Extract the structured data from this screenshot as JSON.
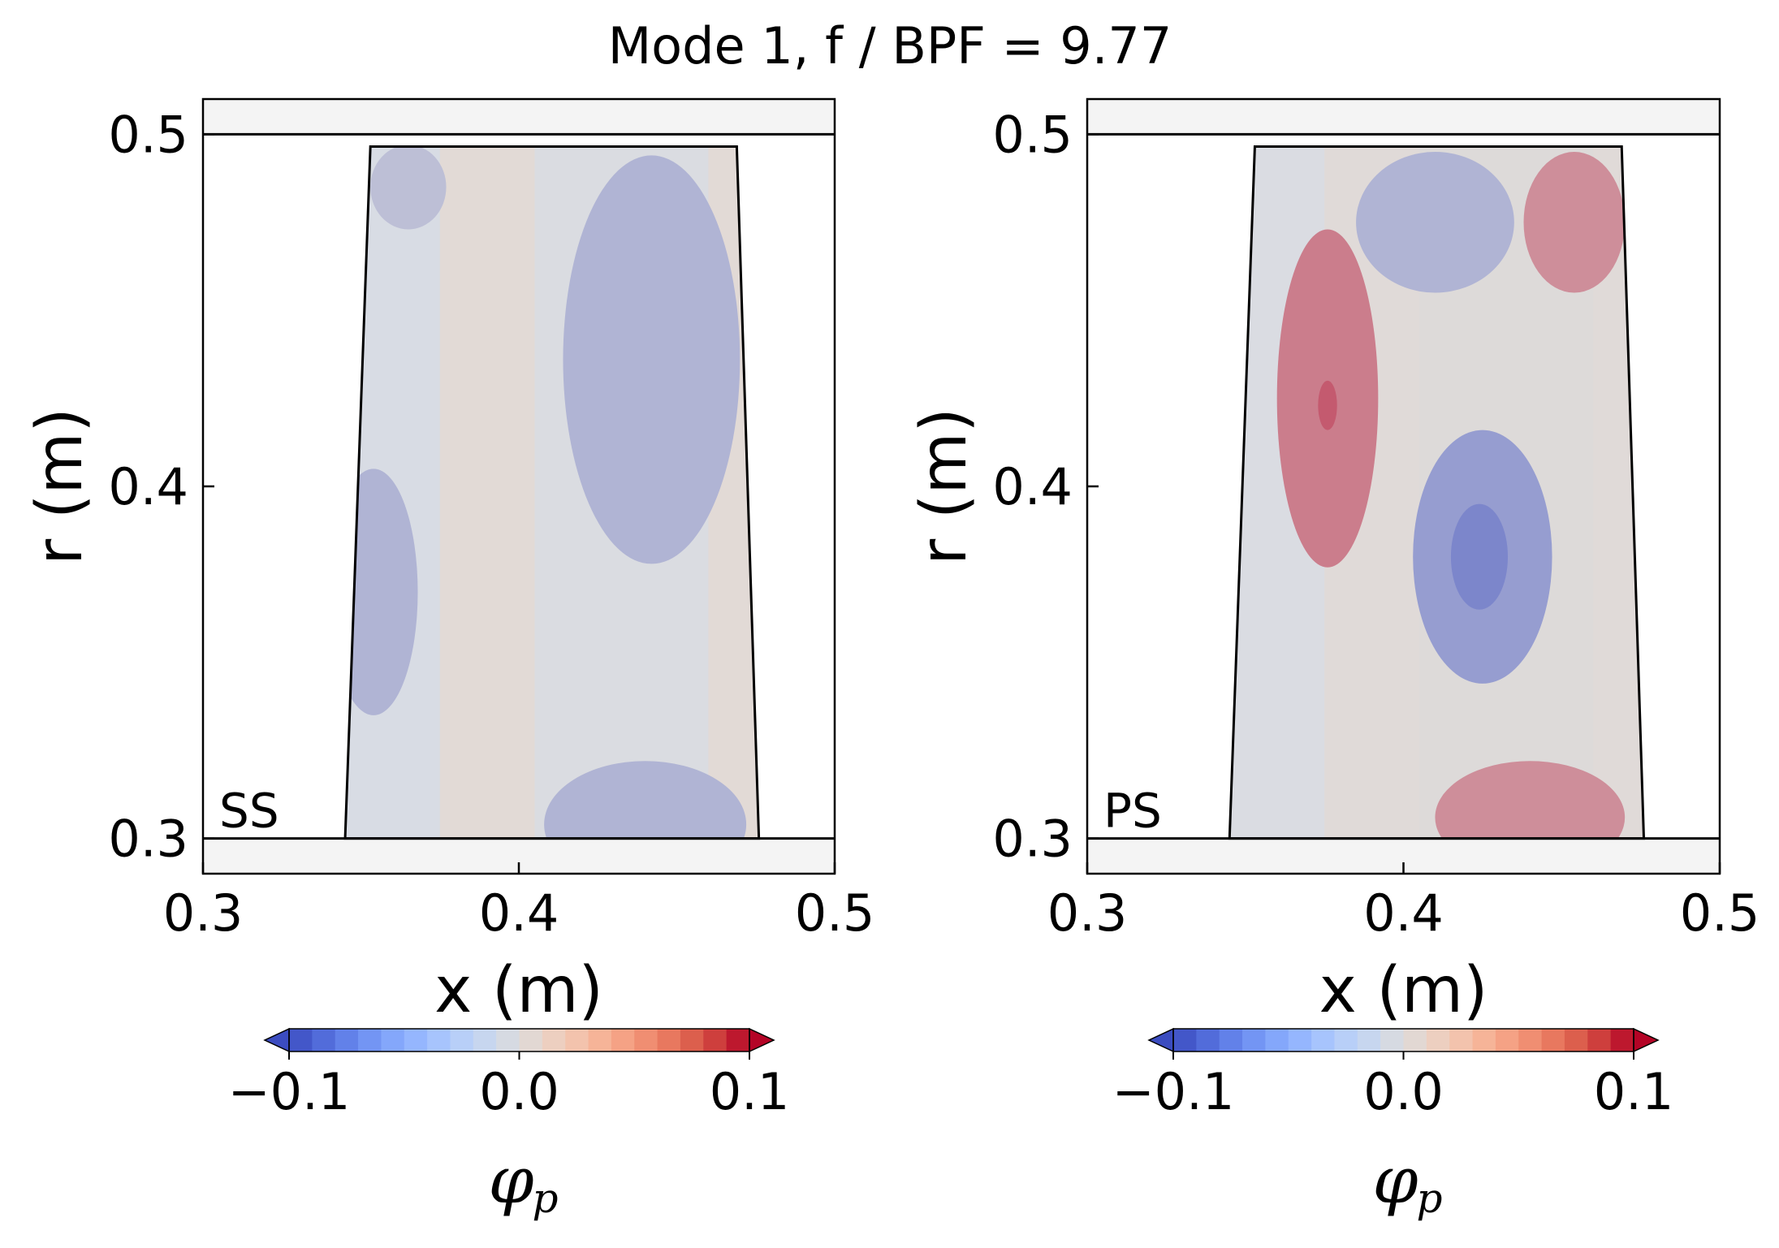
{
  "chart_data": {
    "type": "heatmap",
    "title": "Mode 1, f / BPF = 9.77",
    "colormap": [
      "#3b4cc0",
      "#5977e3",
      "#7b9ff9",
      "#9ebeff",
      "#c0d4f5",
      "#dddcdc",
      "#f2cbb7",
      "#f7ac8e",
      "#ee8468",
      "#d65244",
      "#b40426"
    ],
    "panels": [
      {
        "annotation": "SS",
        "xlabel": "x (m)",
        "ylabel": "r (m)",
        "xlim": [
          0.3,
          0.5
        ],
        "ylim": [
          0.29,
          0.51
        ],
        "xticks": [
          "0.3",
          "0.4",
          "0.5"
        ],
        "yticks": [
          "0.3",
          "0.4",
          "0.5"
        ],
        "hub_r": 0.3,
        "casing_r": 0.5,
        "blade_outline": [
          [
            0.345,
            0.3
          ],
          [
            0.353,
            0.4965
          ],
          [
            0.469,
            0.4965
          ],
          [
            0.476,
            0.3
          ]
        ],
        "field_regions": [
          {
            "cx": 0.442,
            "cy": 0.436,
            "rx": 0.028,
            "ry": 0.058,
            "value": -0.01
          },
          {
            "cx": 0.44,
            "cy": 0.304,
            "rx": 0.032,
            "ry": 0.018,
            "value": -0.01
          },
          {
            "cx": 0.354,
            "cy": 0.37,
            "rx": 0.014,
            "ry": 0.035,
            "value": -0.01
          },
          {
            "cx": 0.365,
            "cy": 0.485,
            "rx": 0.012,
            "ry": 0.012,
            "value": -0.005
          }
        ],
        "colorbar": {
          "label": "φ",
          "label_sub": "p",
          "ticks": [
            "−0.1",
            "0.0",
            "0.1"
          ],
          "range": [
            -0.1,
            0.1
          ]
        }
      },
      {
        "annotation": "PS",
        "xlabel": "x (m)",
        "ylabel": "r (m)",
        "xlim": [
          0.3,
          0.5
        ],
        "ylim": [
          0.29,
          0.51
        ],
        "xticks": [
          "0.3",
          "0.4",
          "0.5"
        ],
        "yticks": [
          "0.3",
          "0.4",
          "0.5"
        ],
        "hub_r": 0.3,
        "casing_r": 0.5,
        "blade_outline": [
          [
            0.345,
            0.3
          ],
          [
            0.353,
            0.4965
          ],
          [
            0.469,
            0.4965
          ],
          [
            0.476,
            0.3
          ]
        ],
        "field_regions": [
          {
            "cx": 0.376,
            "cy": 0.425,
            "rx": 0.016,
            "ry": 0.048,
            "value": 0.02
          },
          {
            "cx": 0.376,
            "cy": 0.423,
            "rx": 0.003,
            "ry": 0.007,
            "value": 0.03
          },
          {
            "cx": 0.425,
            "cy": 0.38,
            "rx": 0.022,
            "ry": 0.036,
            "value": -0.02
          },
          {
            "cx": 0.424,
            "cy": 0.38,
            "rx": 0.009,
            "ry": 0.015,
            "value": -0.03
          },
          {
            "cx": 0.41,
            "cy": 0.475,
            "rx": 0.025,
            "ry": 0.02,
            "value": -0.01
          },
          {
            "cx": 0.454,
            "cy": 0.475,
            "rx": 0.016,
            "ry": 0.02,
            "value": 0.015
          },
          {
            "cx": 0.44,
            "cy": 0.306,
            "rx": 0.03,
            "ry": 0.016,
            "value": 0.015
          }
        ],
        "colorbar": {
          "label": "φ",
          "label_sub": "p",
          "ticks": [
            "−0.1",
            "0.0",
            "0.1"
          ],
          "range": [
            -0.1,
            0.1
          ]
        }
      }
    ]
  }
}
